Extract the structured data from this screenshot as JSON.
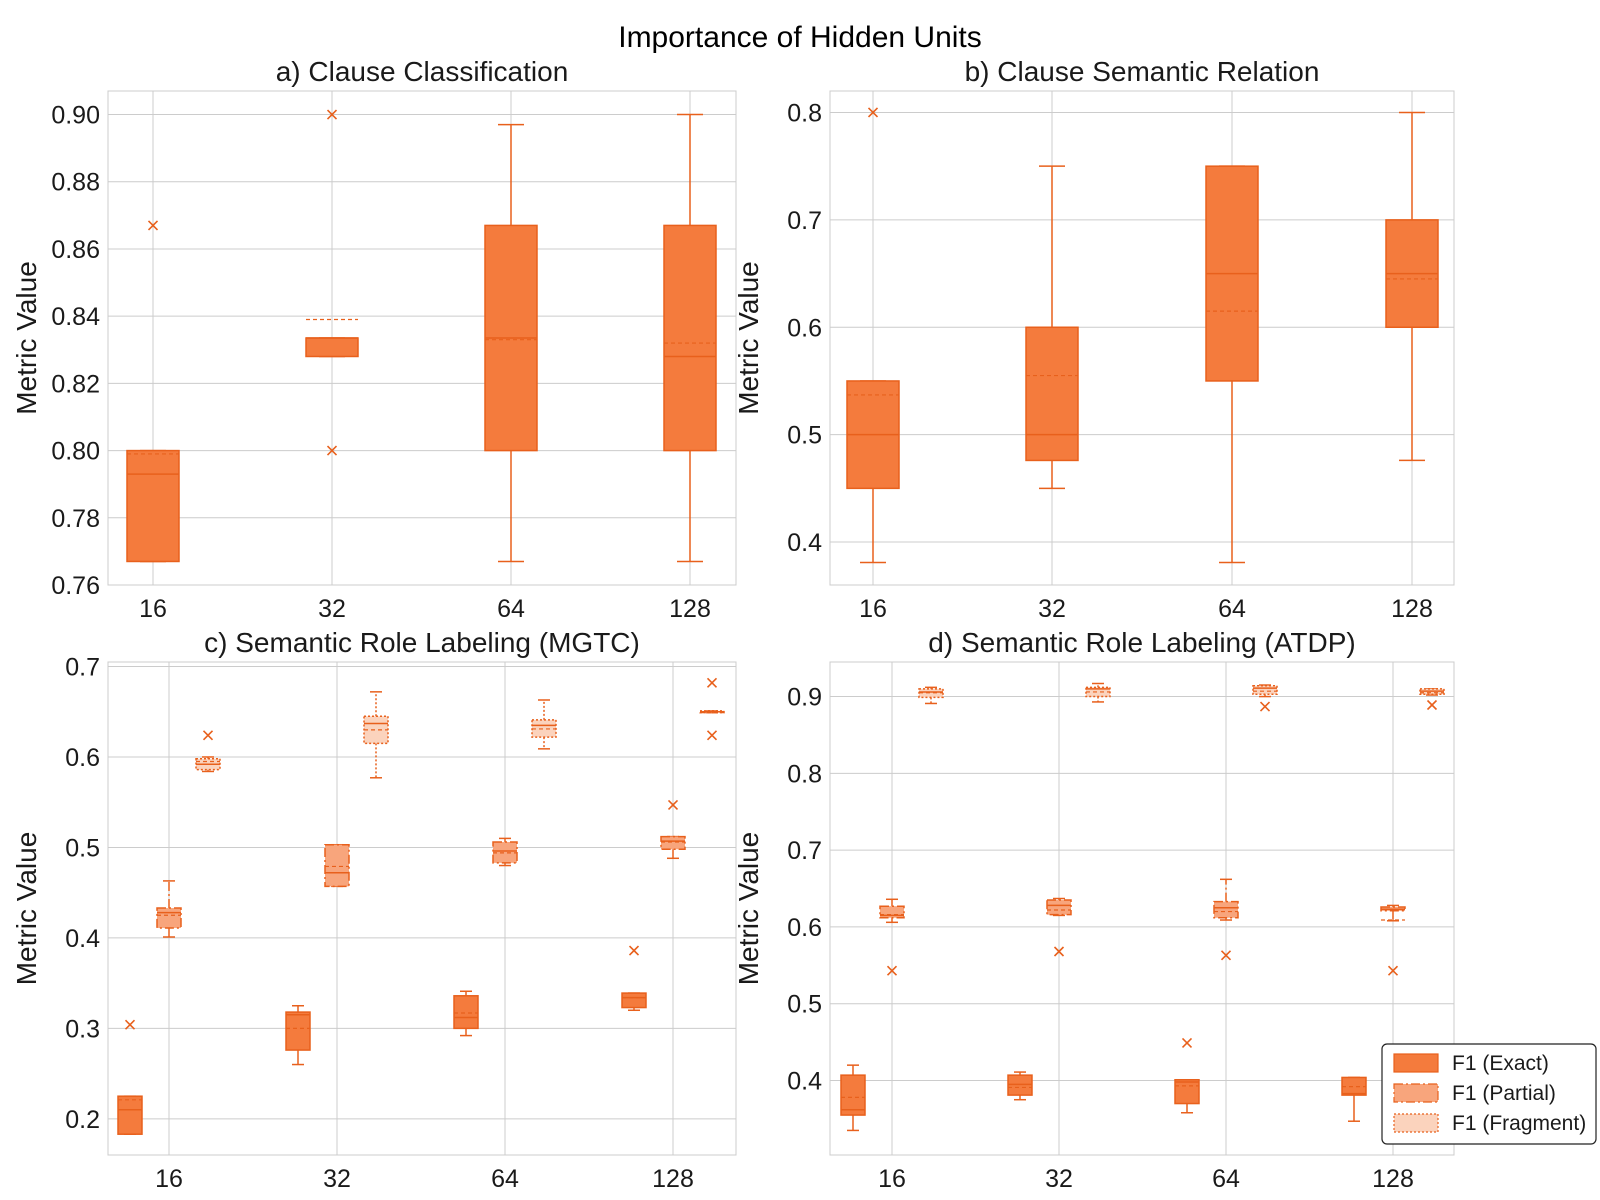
{
  "figure_title": "Importance of Hidden Units",
  "colors": {
    "primary": "#f47b3d",
    "edge": "#e8601c",
    "light": "#f8a57c",
    "lighter": "#fbd3bd",
    "grid": "#cccccc"
  },
  "legend": {
    "items": [
      {
        "label": "F1 (Exact)",
        "style": "solid"
      },
      {
        "label": "F1 (Partial)",
        "style": "dashdot"
      },
      {
        "label": "F1 (Fragment)",
        "style": "dotted"
      }
    ]
  },
  "chart_data": [
    {
      "type": "box",
      "title": "a) Clause Classification",
      "ylabel": "Metric Value",
      "ylim": [
        0.76,
        0.907
      ],
      "yticks": [
        "0.76",
        "0.78",
        "0.80",
        "0.82",
        "0.84",
        "0.86",
        "0.88",
        "0.90"
      ],
      "categories": [
        "16",
        "32",
        "64",
        "128"
      ],
      "grid": true,
      "series": [
        {
          "boxes": [
            {
              "category": "16",
              "whislo": 0.767,
              "q1": 0.767,
              "median": 0.793,
              "mean": 0.799,
              "q3": 0.8,
              "whishi": 0.8,
              "fliers": [
                0.867
              ]
            },
            {
              "category": "32",
              "whislo": 0.828,
              "q1": 0.828,
              "median": 0.8335,
              "mean": 0.839,
              "q3": 0.8335,
              "whishi": 0.8335,
              "fliers": [
                0.9,
                0.8
              ]
            },
            {
              "category": "64",
              "whislo": 0.767,
              "q1": 0.8,
              "median": 0.8335,
              "mean": 0.833,
              "q3": 0.867,
              "whishi": 0.897,
              "fliers": []
            },
            {
              "category": "128",
              "whislo": 0.767,
              "q1": 0.8,
              "median": 0.828,
              "mean": 0.832,
              "q3": 0.867,
              "whishi": 0.9,
              "fliers": []
            }
          ]
        }
      ]
    },
    {
      "type": "box",
      "title": "b) Clause Semantic Relation",
      "ylabel": "Metric Value",
      "ylim": [
        0.36,
        0.82
      ],
      "yticks": [
        "0.4",
        "0.5",
        "0.6",
        "0.7",
        "0.8"
      ],
      "categories": [
        "16",
        "32",
        "64",
        "128"
      ],
      "grid": true,
      "series": [
        {
          "boxes": [
            {
              "category": "16",
              "whislo": 0.381,
              "q1": 0.45,
              "median": 0.5,
              "mean": 0.537,
              "q3": 0.55,
              "whishi": 0.55,
              "fliers": [
                0.8
              ]
            },
            {
              "category": "32",
              "whislo": 0.45,
              "q1": 0.476,
              "median": 0.5,
              "mean": 0.555,
              "q3": 0.6,
              "whishi": 0.75,
              "fliers": []
            },
            {
              "category": "64",
              "whislo": 0.381,
              "q1": 0.55,
              "median": 0.65,
              "mean": 0.615,
              "q3": 0.75,
              "whishi": 0.75,
              "fliers": []
            },
            {
              "category": "128",
              "whislo": 0.476,
              "q1": 0.6,
              "median": 0.65,
              "mean": 0.645,
              "q3": 0.7,
              "whishi": 0.8,
              "fliers": []
            }
          ]
        }
      ]
    },
    {
      "type": "box",
      "title": "c) Semantic Role Labeling (MGTC)",
      "ylabel": "Metric Value",
      "ylim": [
        0.16,
        0.705
      ],
      "yticks": [
        "0.2",
        "0.3",
        "0.4",
        "0.5",
        "0.6",
        "0.7"
      ],
      "categories": [
        "16",
        "32",
        "64",
        "128"
      ],
      "grid": true,
      "series": [
        {
          "name": "F1 (Exact)",
          "boxes": [
            {
              "category": "16",
              "whislo": 0.183,
              "q1": 0.183,
              "median": 0.21,
              "mean": 0.221,
              "q3": 0.225,
              "whishi": 0.225,
              "fliers": [
                0.304
              ]
            },
            {
              "category": "32",
              "whislo": 0.26,
              "q1": 0.276,
              "median": 0.315,
              "mean": 0.3,
              "q3": 0.318,
              "whishi": 0.325,
              "fliers": []
            },
            {
              "category": "64",
              "whislo": 0.292,
              "q1": 0.3,
              "median": 0.312,
              "mean": 0.317,
              "q3": 0.336,
              "whishi": 0.341,
              "fliers": []
            },
            {
              "category": "128",
              "whislo": 0.32,
              "q1": 0.323,
              "median": 0.334,
              "mean": 0.334,
              "q3": 0.339,
              "whishi": 0.339,
              "fliers": [
                0.386
              ]
            }
          ]
        },
        {
          "name": "F1 (Partial)",
          "boxes": [
            {
              "category": "16",
              "whislo": 0.401,
              "q1": 0.411,
              "median": 0.428,
              "mean": 0.425,
              "q3": 0.433,
              "whishi": 0.463,
              "fliers": []
            },
            {
              "category": "32",
              "whislo": 0.457,
              "q1": 0.457,
              "median": 0.472,
              "mean": 0.479,
              "q3": 0.503,
              "whishi": 0.503,
              "fliers": []
            },
            {
              "category": "64",
              "whislo": 0.48,
              "q1": 0.483,
              "median": 0.496,
              "mean": 0.494,
              "q3": 0.506,
              "whishi": 0.51,
              "fliers": []
            },
            {
              "category": "128",
              "whislo": 0.488,
              "q1": 0.498,
              "median": 0.507,
              "mean": 0.506,
              "q3": 0.512,
              "whishi": 0.512,
              "fliers": [
                0.547
              ]
            }
          ]
        },
        {
          "name": "F1 (Fragment)",
          "boxes": [
            {
              "category": "16",
              "whislo": 0.584,
              "q1": 0.586,
              "median": 0.592,
              "mean": 0.595,
              "q3": 0.598,
              "whishi": 0.6,
              "fliers": [
                0.624
              ]
            },
            {
              "category": "32",
              "whislo": 0.577,
              "q1": 0.615,
              "median": 0.637,
              "mean": 0.63,
              "q3": 0.645,
              "whishi": 0.672,
              "fliers": []
            },
            {
              "category": "64",
              "whislo": 0.609,
              "q1": 0.622,
              "median": 0.635,
              "mean": 0.631,
              "q3": 0.641,
              "whishi": 0.663,
              "fliers": []
            },
            {
              "category": "128",
              "whislo": 0.649,
              "q1": 0.649,
              "median": 0.65,
              "mean": 0.649,
              "q3": 0.651,
              "whishi": 0.651,
              "fliers": [
                0.682,
                0.624
              ]
            }
          ]
        }
      ]
    },
    {
      "type": "box",
      "title": "d) Semantic Role Labeling (ATDP)",
      "ylabel": "Metric Value",
      "ylim": [
        0.303,
        0.945
      ],
      "yticks": [
        "0.4",
        "0.5",
        "0.6",
        "0.7",
        "0.8",
        "0.9"
      ],
      "categories": [
        "16",
        "32",
        "64",
        "128"
      ],
      "grid": true,
      "series": [
        {
          "name": "F1 (Exact)",
          "boxes": [
            {
              "category": "16",
              "whislo": 0.335,
              "q1": 0.355,
              "median": 0.362,
              "mean": 0.378,
              "q3": 0.407,
              "whishi": 0.42,
              "fliers": []
            },
            {
              "category": "32",
              "whislo": 0.375,
              "q1": 0.381,
              "median": 0.395,
              "mean": 0.391,
              "q3": 0.407,
              "whishi": 0.411,
              "fliers": []
            },
            {
              "category": "64",
              "whislo": 0.358,
              "q1": 0.37,
              "median": 0.398,
              "mean": 0.393,
              "q3": 0.401,
              "whishi": 0.401,
              "fliers": [
                0.449
              ]
            },
            {
              "category": "128",
              "whislo": 0.347,
              "q1": 0.381,
              "median": 0.383,
              "mean": 0.392,
              "q3": 0.404,
              "whishi": 0.404,
              "fliers": []
            }
          ]
        },
        {
          "name": "F1 (Partial)",
          "boxes": [
            {
              "category": "16",
              "whislo": 0.606,
              "q1": 0.612,
              "median": 0.615,
              "mean": 0.616,
              "q3": 0.627,
              "whishi": 0.636,
              "fliers": [
                0.543
              ]
            },
            {
              "category": "32",
              "whislo": 0.615,
              "q1": 0.616,
              "median": 0.628,
              "mean": 0.622,
              "q3": 0.635,
              "whishi": 0.637,
              "fliers": [
                0.568
              ]
            },
            {
              "category": "64",
              "whislo": 0.609,
              "q1": 0.612,
              "median": 0.625,
              "mean": 0.62,
              "q3": 0.633,
              "whishi": 0.662,
              "fliers": [
                0.563
              ]
            },
            {
              "category": "128",
              "whislo": 0.608,
              "q1": 0.621,
              "median": 0.623,
              "mean": 0.609,
              "q3": 0.626,
              "whishi": 0.628,
              "fliers": [
                0.543
              ]
            }
          ]
        },
        {
          "name": "F1 (Fragment)",
          "boxes": [
            {
              "category": "16",
              "whislo": 0.891,
              "q1": 0.899,
              "median": 0.906,
              "mean": 0.905,
              "q3": 0.91,
              "whishi": 0.912,
              "fliers": []
            },
            {
              "category": "32",
              "whislo": 0.893,
              "q1": 0.9,
              "median": 0.91,
              "mean": 0.906,
              "q3": 0.912,
              "whishi": 0.917,
              "fliers": []
            },
            {
              "category": "64",
              "whislo": 0.9,
              "q1": 0.903,
              "median": 0.911,
              "mean": 0.907,
              "q3": 0.914,
              "whishi": 0.915,
              "fliers": [
                0.887
              ]
            },
            {
              "category": "128",
              "whislo": 0.902,
              "q1": 0.903,
              "median": 0.907,
              "mean": 0.905,
              "q3": 0.91,
              "whishi": 0.91,
              "fliers": [
                0.889
              ]
            }
          ]
        }
      ]
    }
  ]
}
